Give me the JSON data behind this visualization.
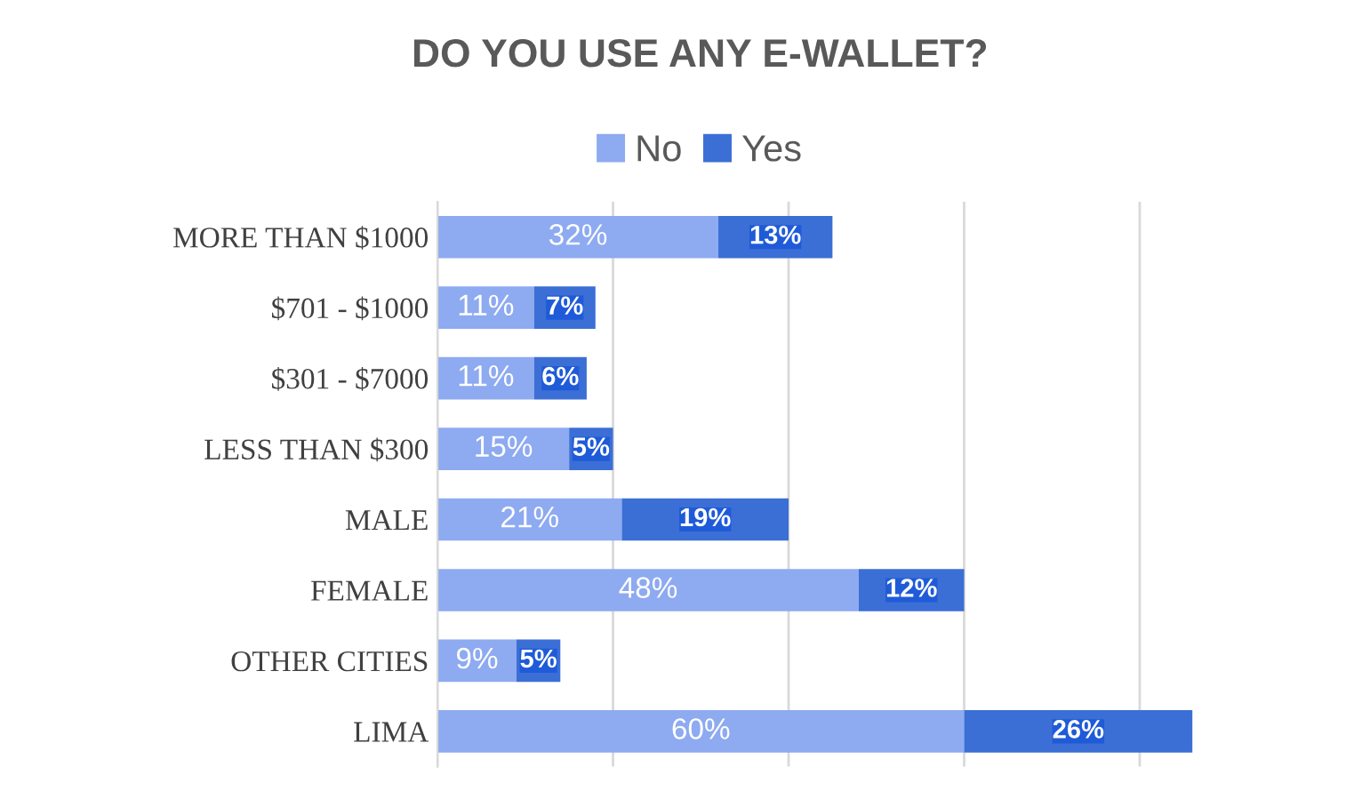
{
  "chart_data": {
    "type": "bar",
    "title": "DO YOU USE ANY E-WALLET?",
    "orientation": "horizontal",
    "stacked": true,
    "categories": [
      "MORE THAN $1000",
      "$701 - $1000",
      "$301 - $7000",
      "LESS THAN $300",
      "MALE",
      "FEMALE",
      "OTHER CITIES",
      "LIMA"
    ],
    "series": [
      {
        "name": "No",
        "color": "#8eaaf0",
        "values": [
          32,
          11,
          11,
          15,
          21,
          48,
          9,
          60
        ],
        "value_labels": [
          "32%",
          "11%",
          "11%",
          "15%",
          "21%",
          "48%",
          "9%",
          "60%"
        ]
      },
      {
        "name": "Yes",
        "color": "#3b6fd6",
        "values": [
          13,
          7,
          6,
          5,
          19,
          12,
          5,
          26
        ],
        "value_labels": [
          "13%",
          "7%",
          "6%",
          "5%",
          "19%",
          "12%",
          "5%",
          "26%"
        ]
      }
    ],
    "tick_labels": "y",
    "grid": "x",
    "legend": "top"
  }
}
